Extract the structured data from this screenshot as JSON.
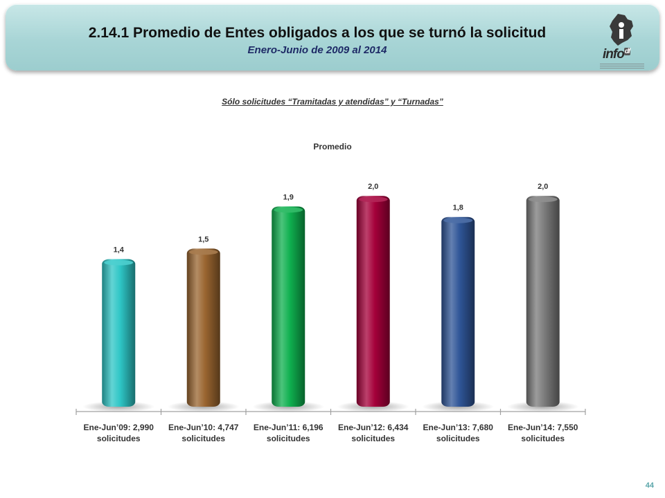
{
  "header": {
    "title": "2.14.1 Promedio de Entes obligados a los que se turnó la solicitud",
    "subtitle": "Enero-Junio de 2009 al 2014",
    "logo_text": "info",
    "logo_suffix": "df"
  },
  "chart_data": {
    "type": "bar",
    "title": "Promedio",
    "subtitle": "Sólo solicitudes “Tramitadas y atendidas” y “Turnadas”",
    "categories": [
      [
        "Ene-Jun’09: 2,990",
        "solicitudes"
      ],
      [
        "Ene-Jun’10: 4,747",
        "solicitudes"
      ],
      [
        "Ene-Jun’11: 6,196",
        "solicitudes"
      ],
      [
        "Ene-Jun’12: 6,434",
        "solicitudes"
      ],
      [
        "Ene-Jun’13: 7,680",
        "solicitudes"
      ],
      [
        "Ene-Jun’14: 7,550",
        "solicitudes"
      ]
    ],
    "values": [
      1.4,
      1.5,
      1.9,
      2.0,
      1.8,
      2.0
    ],
    "data_labels": [
      "1,4",
      "1,5",
      "1,9",
      "2,0",
      "1,8",
      "2,0"
    ],
    "colors": [
      "#2ec6c6",
      "#9a6530",
      "#0fb04f",
      "#a5003a",
      "#2f5597",
      "#7b7b7b"
    ],
    "ylim": [
      0,
      2.1
    ],
    "grid": false,
    "legend": "none"
  },
  "footer": {
    "page_number": "44"
  }
}
